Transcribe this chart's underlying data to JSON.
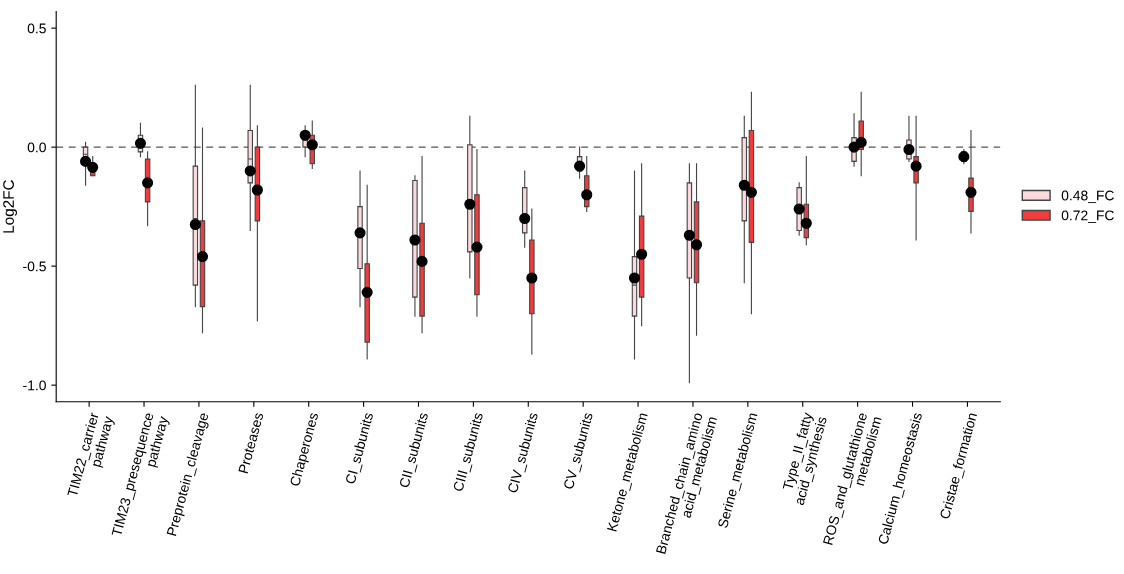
{
  "chart_data": {
    "type": "box",
    "ylabel": "Log2FC",
    "categories": [
      "TIM22_carrier\npathway",
      "TIM23_presequence\npathway",
      "Preprotein_cleavage",
      "Proteases",
      "Chaperones",
      "CI_subunits",
      "CII_subunits",
      "CIII_subunits",
      "CIV_subunits",
      "CV_subunits",
      "Ketone_metabolism",
      "Branched_chain_amino\nacid_metabolism",
      "Serine_metabolism",
      "Type_II_fatty\nacid_synthesis",
      "ROS_and_glutathione\nmetabolism",
      "Calcium_homeostasis",
      "Cristae_formation"
    ],
    "ylim": [
      -1.07,
      0.57
    ],
    "yticks": [
      {
        "value": -1.0,
        "label": "-1.0"
      },
      {
        "value": -0.5,
        "label": "-0.5"
      },
      {
        "value": 0.0,
        "label": "0.0"
      },
      {
        "value": 0.5,
        "label": "0.5"
      }
    ],
    "grid": false,
    "legend": "right",
    "ref_lines": [
      {
        "axis": "y",
        "value": 0,
        "line_style": "dashed",
        "color": "#555555"
      }
    ],
    "series": [
      {
        "name": "0.48_FC",
        "color": "#fadadd",
        "boxes": [
          {
            "low": -0.16,
            "q1": -0.05,
            "median": -0.03,
            "q3": 0.0,
            "high": 0.02,
            "mean": -0.06
          },
          {
            "low": -0.04,
            "q1": -0.02,
            "median": 0.02,
            "q3": 0.05,
            "high": 0.1,
            "mean": 0.016
          },
          {
            "low": -0.67,
            "q1": -0.58,
            "median": -0.3,
            "q3": -0.08,
            "high": 0.26,
            "mean": -0.325
          },
          {
            "low": -0.35,
            "q1": -0.15,
            "median": -0.05,
            "q3": 0.07,
            "high": 0.26,
            "mean": -0.1
          },
          {
            "low": -0.04,
            "q1": 0.0,
            "median": 0.03,
            "q3": 0.05,
            "high": 0.09,
            "mean": 0.05
          },
          {
            "low": -0.67,
            "q1": -0.51,
            "median": -0.35,
            "q3": -0.25,
            "high": -0.1,
            "mean": -0.36
          },
          {
            "low": -0.71,
            "q1": -0.63,
            "median": -0.38,
            "q3": -0.14,
            "high": -0.12,
            "mean": -0.39
          },
          {
            "low": -0.55,
            "q1": -0.44,
            "median": -0.22,
            "q3": 0.01,
            "high": 0.13,
            "mean": -0.24
          },
          {
            "low": -0.42,
            "q1": -0.36,
            "median": -0.28,
            "q3": -0.17,
            "high": -0.1,
            "mean": -0.3
          },
          {
            "low": -0.13,
            "q1": -0.1,
            "median": -0.07,
            "q3": -0.04,
            "high": 0.0,
            "mean": -0.08
          },
          {
            "low": -0.89,
            "q1": -0.71,
            "median": -0.58,
            "q3": -0.46,
            "high": -0.1,
            "mean": -0.55
          },
          {
            "low": -0.99,
            "q1": -0.55,
            "median": -0.36,
            "q3": -0.15,
            "high": -0.07,
            "mean": -0.37
          },
          {
            "low": -0.57,
            "q1": -0.31,
            "median": -0.15,
            "q3": 0.04,
            "high": 0.13,
            "mean": -0.16
          },
          {
            "low": -0.37,
            "q1": -0.35,
            "median": -0.25,
            "q3": -0.17,
            "high": -0.15,
            "mean": -0.26
          },
          {
            "low": -0.08,
            "q1": -0.06,
            "median": 0.0,
            "q3": 0.04,
            "high": 0.14,
            "mean": 0.0
          },
          {
            "low": -0.06,
            "q1": -0.05,
            "median": -0.01,
            "q3": 0.03,
            "high": 0.13,
            "mean": -0.01
          },
          {
            "low": -0.07,
            "q1": -0.06,
            "median": -0.04,
            "q3": -0.02,
            "high": -0.01,
            "mean": -0.04
          }
        ]
      },
      {
        "name": "0.72_FC",
        "color": "#f03c3c",
        "boxes": [
          {
            "low": -0.12,
            "q1": -0.12,
            "median": -0.09,
            "q3": -0.07,
            "high": -0.04,
            "mean": -0.085
          },
          {
            "low": -0.33,
            "q1": -0.23,
            "median": -0.15,
            "q3": -0.05,
            "high": -0.02,
            "mean": -0.15
          },
          {
            "low": -0.78,
            "q1": -0.67,
            "median": -0.45,
            "q3": -0.31,
            "high": 0.08,
            "mean": -0.46
          },
          {
            "low": -0.73,
            "q1": -0.31,
            "median": -0.17,
            "q3": 0.0,
            "high": 0.09,
            "mean": -0.18
          },
          {
            "low": -0.09,
            "q1": -0.07,
            "median": 0.01,
            "q3": 0.05,
            "high": 0.11,
            "mean": 0.01
          },
          {
            "low": -0.89,
            "q1": -0.82,
            "median": -0.6,
            "q3": -0.49,
            "high": -0.16,
            "mean": -0.61
          },
          {
            "low": -0.78,
            "q1": -0.71,
            "median": -0.47,
            "q3": -0.32,
            "high": -0.04,
            "mean": -0.48
          },
          {
            "low": -0.71,
            "q1": -0.62,
            "median": -0.42,
            "q3": -0.2,
            "high": -0.01,
            "mean": -0.42
          },
          {
            "low": -0.87,
            "q1": -0.7,
            "median": -0.55,
            "q3": -0.39,
            "high": -0.26,
            "mean": -0.55
          },
          {
            "low": -0.27,
            "q1": -0.25,
            "median": -0.2,
            "q3": -0.12,
            "high": -0.04,
            "mean": -0.2
          },
          {
            "low": -0.75,
            "q1": -0.63,
            "median": -0.44,
            "q3": -0.29,
            "high": -0.07,
            "mean": -0.45
          },
          {
            "low": -0.79,
            "q1": -0.57,
            "median": -0.41,
            "q3": -0.23,
            "high": -0.07,
            "mean": -0.41
          },
          {
            "low": -0.7,
            "q1": -0.4,
            "median": -0.19,
            "q3": 0.07,
            "high": 0.23,
            "mean": -0.19
          },
          {
            "low": -0.41,
            "q1": -0.38,
            "median": -0.32,
            "q3": -0.24,
            "high": -0.04,
            "mean": -0.32
          },
          {
            "low": -0.12,
            "q1": -0.01,
            "median": 0.02,
            "q3": 0.11,
            "high": 0.23,
            "mean": 0.02
          },
          {
            "low": -0.39,
            "q1": -0.15,
            "median": -0.08,
            "q3": -0.04,
            "high": 0.13,
            "mean": -0.08
          },
          {
            "low": -0.36,
            "q1": -0.27,
            "median": -0.19,
            "q3": -0.13,
            "high": 0.07,
            "mean": -0.19
          }
        ]
      }
    ]
  }
}
